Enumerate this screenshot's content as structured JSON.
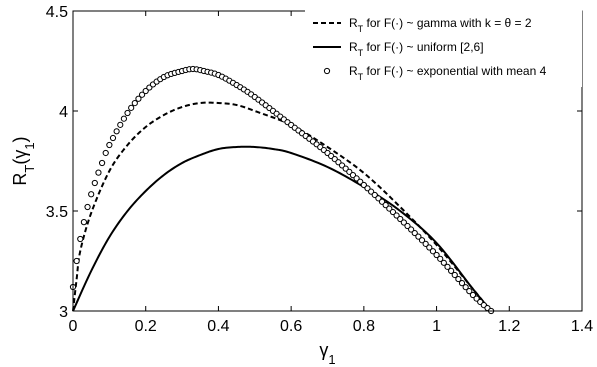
{
  "chart_data": {
    "type": "line",
    "xlabel": "γ1",
    "ylabel": "RT(γ1)",
    "xlim": [
      0,
      1.4
    ],
    "ylim": [
      3,
      4.5
    ],
    "x_ticks": [
      "0",
      "0.2",
      "0.4",
      "0.6",
      "0.8",
      "1",
      "1.2",
      "1.4"
    ],
    "y_ticks": [
      "3",
      "3.5",
      "4",
      "4.5"
    ],
    "legend_placement": "top-right",
    "legend": [
      "RT for F(·) ~ gamma with k = θ = 2",
      "RT for F(·) ~ uniform [2,6]",
      "RT for F(·) ~ exponential with mean 4"
    ],
    "series": [
      {
        "name": "RT for F(·) ~ gamma with k = θ = 2",
        "style": "dashed",
        "x": [
          0.0,
          0.01,
          0.02,
          0.05,
          0.1,
          0.15,
          0.2,
          0.25,
          0.3,
          0.35,
          0.4,
          0.45,
          0.5,
          0.6,
          0.7,
          0.8,
          0.9,
          1.0,
          1.1,
          1.15
        ],
        "y": [
          3.0,
          3.16,
          3.3,
          3.49,
          3.7,
          3.83,
          3.92,
          3.98,
          4.02,
          4.04,
          4.04,
          4.03,
          4.0,
          3.93,
          3.82,
          3.69,
          3.52,
          3.33,
          3.11,
          3.0
        ]
      },
      {
        "name": "RT for F(·) ~ uniform [2,6]",
        "style": "solid",
        "x": [
          0.0,
          0.05,
          0.1,
          0.15,
          0.2,
          0.25,
          0.3,
          0.35,
          0.4,
          0.45,
          0.5,
          0.55,
          0.6,
          0.7,
          0.8,
          0.9,
          1.0,
          1.1,
          1.15
        ],
        "y": [
          3.0,
          3.2,
          3.37,
          3.5,
          3.6,
          3.68,
          3.74,
          3.78,
          3.81,
          3.82,
          3.82,
          3.81,
          3.79,
          3.72,
          3.62,
          3.5,
          3.34,
          3.11,
          3.0
        ]
      },
      {
        "name": "RT for F(·) ~ exponential with mean 4",
        "style": "circles",
        "x": [
          0.0,
          0.01,
          0.02,
          0.04,
          0.06,
          0.08,
          0.1,
          0.15,
          0.2,
          0.25,
          0.3,
          0.33,
          0.36,
          0.4,
          0.45,
          0.5,
          0.6,
          0.7,
          0.8,
          0.9,
          1.0,
          1.1,
          1.15
        ],
        "y": [
          3.12,
          3.25,
          3.36,
          3.52,
          3.64,
          3.74,
          3.83,
          3.99,
          4.1,
          4.17,
          4.2,
          4.21,
          4.2,
          4.18,
          4.13,
          4.07,
          3.93,
          3.79,
          3.63,
          3.46,
          3.28,
          3.08,
          3.0
        ]
      }
    ]
  }
}
